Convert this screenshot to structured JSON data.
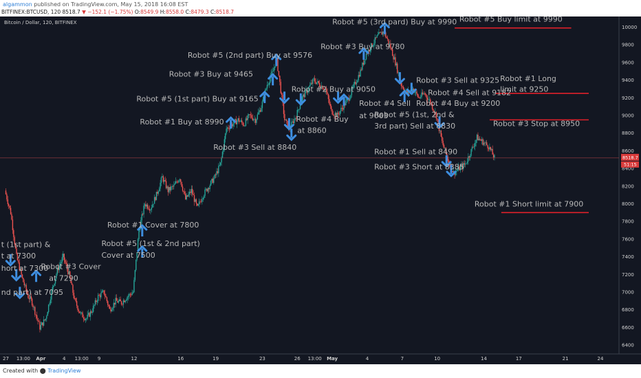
{
  "header": {
    "user": "algammon",
    "published": " published on TradingView.com, May 15, 2018 16:08 EST",
    "symbol": "BITFINEX:BTCUSD, 120",
    "last": "8518.7",
    "change": "▼ −152.1 (−1.75%)",
    "open_label": "O:",
    "open": "8549.9",
    "high_label": "H:",
    "high": "8558.0",
    "low_label": "C:",
    "low": "8479.3",
    "close_label": "C:",
    "close": "8518.7"
  },
  "footer": {
    "created_with": "Created with",
    "brand": "TradingView"
  },
  "colors": {
    "background": "#131722",
    "up": "#26a69a",
    "down": "#ef5350",
    "arrow": "#3e8ee0",
    "level": "#e0202a",
    "annotation": "#b8b8b8"
  },
  "chart_data": {
    "type": "candlestick",
    "title": "Bitcoin / Dollar, 120, BITFINEX",
    "ylim": [
      6300,
      10120
    ],
    "y_ticks": [
      6400,
      6600,
      6800,
      7000,
      7200,
      7400,
      7600,
      7800,
      8000,
      8200,
      8400,
      8600,
      8800,
      9000,
      9200,
      9400,
      9600,
      9800,
      10000
    ],
    "x_ticks": [
      {
        "label": "27",
        "day": 0
      },
      {
        "label": "13:00",
        "day": 1.5
      },
      {
        "label": "Apr",
        "day": 3
      },
      {
        "label": "4",
        "day": 5
      },
      {
        "label": "13:00",
        "day": 6.5
      },
      {
        "label": "9",
        "day": 8
      },
      {
        "label": "12",
        "day": 11
      },
      {
        "label": "16",
        "day": 15
      },
      {
        "label": "19",
        "day": 18
      },
      {
        "label": "23",
        "day": 22
      },
      {
        "label": "26",
        "day": 25
      },
      {
        "label": "13:00",
        "day": 26.5
      },
      {
        "label": "May",
        "day": 28
      },
      {
        "label": "4",
        "day": 31
      },
      {
        "label": "7",
        "day": 34
      },
      {
        "label": "10",
        "day": 37
      },
      {
        "label": "14",
        "day": 41
      },
      {
        "label": "17",
        "day": 44
      },
      {
        "label": "21",
        "day": 48
      },
      {
        "label": "24",
        "day": 51
      }
    ],
    "price_path": [
      [
        0,
        8150
      ],
      [
        0.5,
        7900
      ],
      [
        1.0,
        7400
      ],
      [
        1.5,
        7150
      ],
      [
        2.0,
        6950
      ],
      [
        2.3,
        6900
      ],
      [
        3.0,
        6600
      ],
      [
        3.5,
        6700
      ],
      [
        4.0,
        7000
      ],
      [
        4.5,
        7250
      ],
      [
        5.0,
        7400
      ],
      [
        5.5,
        7200
      ],
      [
        6.0,
        6900
      ],
      [
        6.5,
        6750
      ],
      [
        7.0,
        6700
      ],
      [
        7.5,
        6800
      ],
      [
        8.0,
        6950
      ],
      [
        8.5,
        7000
      ],
      [
        9.0,
        6800
      ],
      [
        9.5,
        6900
      ],
      [
        10.0,
        6880
      ],
      [
        10.5,
        6950
      ],
      [
        11.0,
        7000
      ],
      [
        11.5,
        7700
      ],
      [
        12.0,
        8000
      ],
      [
        12.5,
        7950
      ],
      [
        13.0,
        8100
      ],
      [
        13.5,
        8300
      ],
      [
        14.0,
        8150
      ],
      [
        14.5,
        8200
      ],
      [
        15.0,
        8300
      ],
      [
        15.5,
        8050
      ],
      [
        16.0,
        8150
      ],
      [
        16.5,
        7950
      ],
      [
        17.0,
        8100
      ],
      [
        17.5,
        8200
      ],
      [
        18.0,
        8300
      ],
      [
        18.5,
        8450
      ],
      [
        19.0,
        8850
      ],
      [
        19.5,
        8900
      ],
      [
        20.0,
        8950
      ],
      [
        20.5,
        8900
      ],
      [
        21.0,
        9000
      ],
      [
        21.5,
        8950
      ],
      [
        22.0,
        9100
      ],
      [
        22.5,
        9350
      ],
      [
        23.0,
        9500
      ],
      [
        23.3,
        9650
      ],
      [
        23.7,
        9250
      ],
      [
        24.0,
        8950
      ],
      [
        24.4,
        8850
      ],
      [
        25.0,
        9000
      ],
      [
        25.5,
        9200
      ],
      [
        26.0,
        9300
      ],
      [
        26.5,
        9400
      ],
      [
        27.0,
        9350
      ],
      [
        27.5,
        9300
      ],
      [
        28.0,
        9050
      ],
      [
        28.5,
        9000
      ],
      [
        29.0,
        9100
      ],
      [
        29.5,
        9200
      ],
      [
        30.0,
        9350
      ],
      [
        30.5,
        9500
      ],
      [
        31.0,
        9700
      ],
      [
        31.5,
        9800
      ],
      [
        32.0,
        9900
      ],
      [
        32.5,
        9950
      ],
      [
        33.0,
        9800
      ],
      [
        33.5,
        9600
      ],
      [
        34.0,
        9350
      ],
      [
        34.5,
        9250
      ],
      [
        35.0,
        9300
      ],
      [
        35.5,
        9200
      ],
      [
        36.0,
        9250
      ],
      [
        36.5,
        9150
      ],
      [
        37.0,
        9000
      ],
      [
        37.5,
        8700
      ],
      [
        38.0,
        8500
      ],
      [
        38.5,
        8350
      ],
      [
        39.0,
        8400
      ],
      [
        39.5,
        8450
      ],
      [
        40.0,
        8600
      ],
      [
        40.5,
        8750
      ],
      [
        41.0,
        8700
      ],
      [
        41.5,
        8650
      ],
      [
        42.0,
        8519
      ]
    ],
    "current_price": 8518.7,
    "current_price_label": "8518.7",
    "countdown_label": "51:15",
    "levels": [
      {
        "label": "Robot #5 Buy limit at 9990",
        "price": 9990,
        "from_day": 38.5,
        "to_day": 48.5
      },
      {
        "label": "Robot #1 Long\nlimit at 9250",
        "price": 9250,
        "from_day": 42,
        "to_day": 50
      },
      {
        "label": "Robot #3 Stop at 8950",
        "price": 8950,
        "from_day": 41.5,
        "to_day": 50
      },
      {
        "label": "Robot #1 Short limit at 7900",
        "price": 7900,
        "from_day": 42.5,
        "to_day": 50
      }
    ],
    "arrows": [
      {
        "day": 0.4,
        "price": 7360,
        "dir": "down"
      },
      {
        "day": 0.9,
        "price": 7190,
        "dir": "down"
      },
      {
        "day": 1.2,
        "price": 6990,
        "dir": "down"
      },
      {
        "day": 2.6,
        "price": 7185,
        "dir": "up"
      },
      {
        "day": 11.7,
        "price": 7460,
        "dir": "up"
      },
      {
        "day": 11.7,
        "price": 7700,
        "dir": "up"
      },
      {
        "day": 19.3,
        "price": 8920,
        "dir": "up"
      },
      {
        "day": 22.2,
        "price": 9210,
        "dir": "up"
      },
      {
        "day": 22.9,
        "price": 9410,
        "dir": "up"
      },
      {
        "day": 23.2,
        "price": 9630,
        "dir": "up"
      },
      {
        "day": 23.9,
        "price": 9200,
        "dir": "down"
      },
      {
        "day": 24.3,
        "price": 8900,
        "dir": "down"
      },
      {
        "day": 24.5,
        "price": 8780,
        "dir": "down"
      },
      {
        "day": 25.3,
        "price": 9180,
        "dir": "down"
      },
      {
        "day": 28.5,
        "price": 9200,
        "dir": "down"
      },
      {
        "day": 29.0,
        "price": 9180,
        "dir": "up"
      },
      {
        "day": 30.7,
        "price": 9700,
        "dir": "up"
      },
      {
        "day": 32.5,
        "price": 9990,
        "dir": "up"
      },
      {
        "day": 33.8,
        "price": 9420,
        "dir": "down"
      },
      {
        "day": 34.2,
        "price": 9220,
        "dir": "up"
      },
      {
        "day": 34.8,
        "price": 9300,
        "dir": "down"
      },
      {
        "day": 37.2,
        "price": 8920,
        "dir": "down"
      },
      {
        "day": 37.8,
        "price": 8480,
        "dir": "down"
      },
      {
        "day": 38.2,
        "price": 8370,
        "dir": "down"
      }
    ],
    "annotations": [
      {
        "text": "Robot #5 (3rd pard) Buy at 9990",
        "day": 28,
        "price": 10030
      },
      {
        "text": "Robot #3 Buy at 9780",
        "day": 27,
        "price": 9750
      },
      {
        "text": "Robot #5 (2nd part) Buy at 9576",
        "day": 15.6,
        "price": 9655
      },
      {
        "text": "Robot #3 Buy at 9465",
        "day": 14,
        "price": 9440
      },
      {
        "text": "Robot #5 (1st part) Buy at 9165",
        "day": 11.2,
        "price": 9160
      },
      {
        "text": "Robot #1 Buy at 8990",
        "day": 11.5,
        "price": 8900
      },
      {
        "text": "Robot #3 Sell at 8840",
        "day": 17.8,
        "price": 8610
      },
      {
        "text": "Robot #2 Buy at 9050",
        "day": 24.5,
        "price": 9270
      },
      {
        "text": "Robot #4 Buy",
        "day": 24.9,
        "price": 8930
      },
      {
        "text": "at 8860",
        "day": 25.0,
        "price": 8800
      },
      {
        "text": "Robot #4 Sell",
        "day": 30.3,
        "price": 9110
      },
      {
        "text": "at 9063",
        "day": 30.3,
        "price": 8970
      },
      {
        "text": "Robot #3 Sell at 9325",
        "day": 35.2,
        "price": 9370
      },
      {
        "text": "Robot #4 Sell at 9182",
        "day": 36.2,
        "price": 9230
      },
      {
        "text": "Robot #4 Buy at 9200",
        "day": 35.2,
        "price": 9110
      },
      {
        "text": "Robot #5 (1st, 2nd &",
        "day": 31.6,
        "price": 8980
      },
      {
        "text": "3rd part) Sell at 8830",
        "day": 31.6,
        "price": 8850
      },
      {
        "text": "Robot #1 Sell at 8490",
        "day": 31.6,
        "price": 8560
      },
      {
        "text": "Robot #3 Short at 8385",
        "day": 31.6,
        "price": 8390
      },
      {
        "text": "Robot #3 Stop at 8950",
        "day": 41.8,
        "price": 8880
      },
      {
        "text": "Robot #5 Buy limit at 9990",
        "day": 38.9,
        "price": 10060
      },
      {
        "text": "Robot #1 Long",
        "day": 42.4,
        "price": 9390
      },
      {
        "text": "limit at 9250",
        "day": 42.4,
        "price": 9270
      },
      {
        "text": "Robot #1 Short limit at 7900",
        "day": 40.2,
        "price": 7970
      },
      {
        "text": "Robot #1 Cover at 7800",
        "day": 8.7,
        "price": 7730
      },
      {
        "text": "Robot #5 (1st & 2nd part)",
        "day": 8.2,
        "price": 7520
      },
      {
        "text": "Cover at 7500",
        "day": 8.2,
        "price": 7390
      },
      {
        "text": "Robot #3 Cover",
        "day": 3.0,
        "price": 7260
      },
      {
        "text": "at 7290",
        "day": 3.7,
        "price": 7130
      },
      {
        "text": "t (1st part) &",
        "day": -0.4,
        "price": 7510
      },
      {
        "text": "t at 7300",
        "day": -0.4,
        "price": 7380
      },
      {
        "text": "hort at 7300",
        "day": -0.4,
        "price": 7240
      },
      {
        "text": "nd part) at 7095",
        "day": -0.4,
        "price": 6970
      }
    ]
  }
}
